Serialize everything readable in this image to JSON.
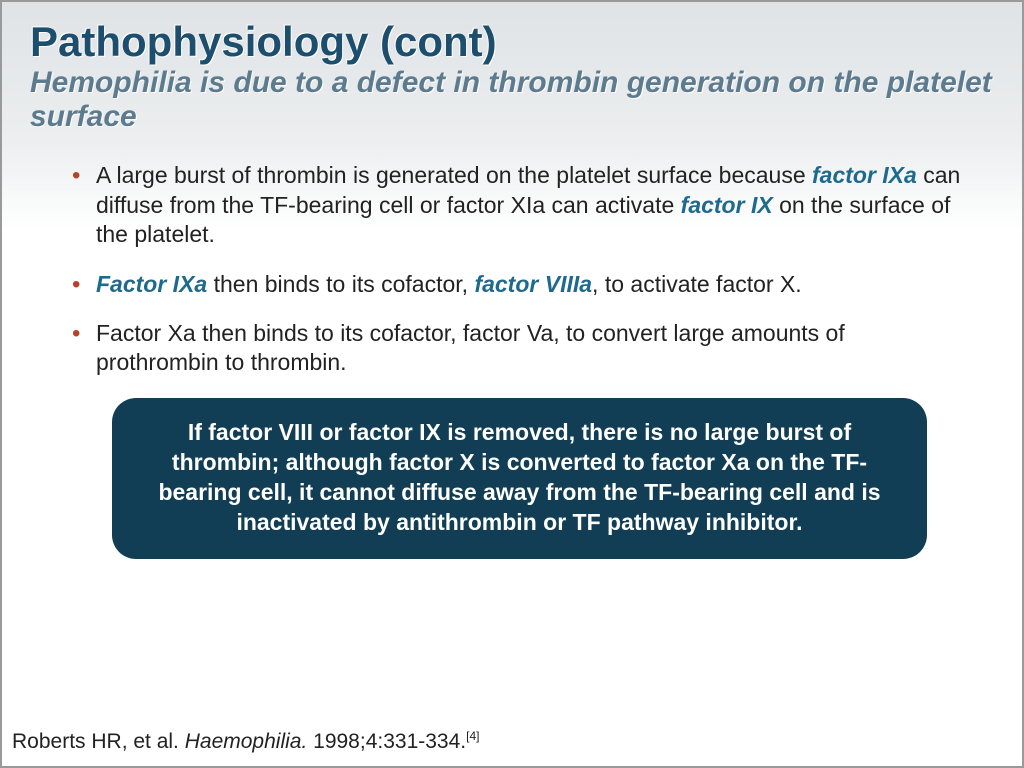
{
  "colors": {
    "title": "#1d4e6e",
    "subtitle": "#5d7b8f",
    "bullet_marker": "#b4432a",
    "body_text": "#222222",
    "emphasis": "#1d6a8e",
    "callout_bg": "#123e55",
    "callout_text": "#ffffff",
    "slide_border": "#9a9a9a",
    "bg_gradient_top": "#dfe3e6",
    "bg_gradient_bottom": "#ffffff"
  },
  "typography": {
    "title_fontsize": 42,
    "subtitle_fontsize": 30,
    "body_fontsize": 23,
    "callout_fontsize": 23,
    "citation_fontsize": 21
  },
  "header": {
    "title": "Pathophysiology (cont)",
    "subtitle": "Hemophilia is due to a defect in thrombin generation on the platelet surface"
  },
  "bullets": [
    {
      "pre1": "A large burst of thrombin is generated on the platelet surface because ",
      "em1": "factor IXa",
      "mid1": " can diffuse from the TF-bearing cell or factor XIa can activate ",
      "em2": "factor IX",
      "post1": " on the surface of the platelet."
    },
    {
      "em1": "Factor IXa",
      "mid1": " then binds to its cofactor, ",
      "em2": "factor VIIIa",
      "post1": ", to activate factor X."
    },
    {
      "pre1": "Factor Xa then binds to its cofactor, factor Va, to convert large amounts of prothrombin to thrombin."
    }
  ],
  "callout": {
    "text": "If factor VIII or factor IX is removed, there is no large burst of thrombin; although factor X is converted to factor Xa on the TF-bearing cell, it cannot diffuse away from the TF-bearing cell and is inactivated by antithrombin or TF pathway inhibitor."
  },
  "citation": {
    "authors": "Roberts HR, et al. ",
    "journal": "Haemophilia.",
    "details": " 1998;4:331-334.",
    "ref": "[4]"
  }
}
